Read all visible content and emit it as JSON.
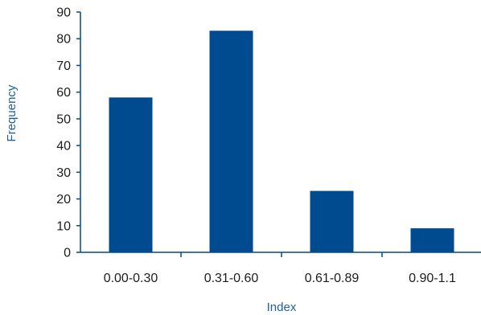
{
  "chart_data": {
    "type": "bar",
    "title": "",
    "xlabel": "Index",
    "ylabel": "Frequency",
    "categories": [
      "0.00-0.30",
      "0.31-0.60",
      "0.61-0.89",
      "0.90-1.1"
    ],
    "values": [
      58,
      83,
      23,
      9
    ],
    "ylim": [
      0,
      90
    ],
    "yticks": [
      0,
      10,
      20,
      30,
      40,
      50,
      60,
      70,
      80,
      90
    ],
    "grid": false,
    "legend": "none",
    "colors": {
      "bar": "#004a8f",
      "axis": "#004a8f",
      "axis_title": "#1f5fa0",
      "tick_text": "#1c1c1c"
    }
  }
}
